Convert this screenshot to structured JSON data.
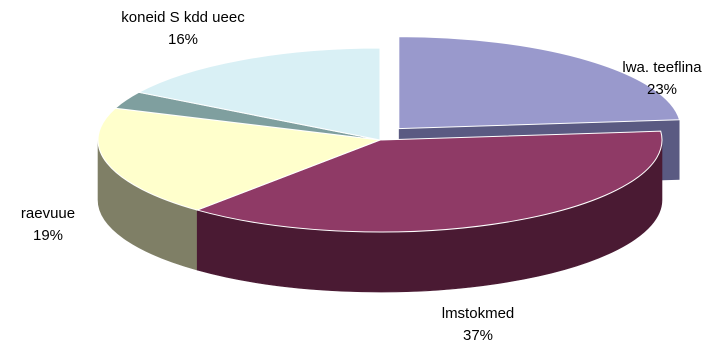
{
  "chart_data": {
    "type": "pie",
    "variant": "3d-exploded",
    "slices": [
      {
        "label": "lwa. teeflina",
        "pct_label": "23%",
        "value": 23,
        "color": "#9999cc",
        "side_color": "#5a5a82",
        "exploded": true
      },
      {
        "label": "lmstokmed",
        "pct_label": "37%",
        "value": 37,
        "color": "#8f3a66",
        "side_color": "#4a1a33",
        "exploded": false
      },
      {
        "label": "raevuue",
        "pct_label": "19%",
        "value": 19,
        "color": "#ffffcc",
        "side_color": "#7f7f66",
        "exploded": false
      },
      {
        "label": "",
        "pct_label": "",
        "value": 3,
        "color": "#7f9f9f",
        "side_color": "#4a6262",
        "exploded": false
      },
      {
        "label": "koneid S kdd ueec",
        "pct_label": "16%",
        "value": 16,
        "color": "#d9f0f5",
        "side_color": "#8fa8ad",
        "exploded": false
      }
    ]
  }
}
